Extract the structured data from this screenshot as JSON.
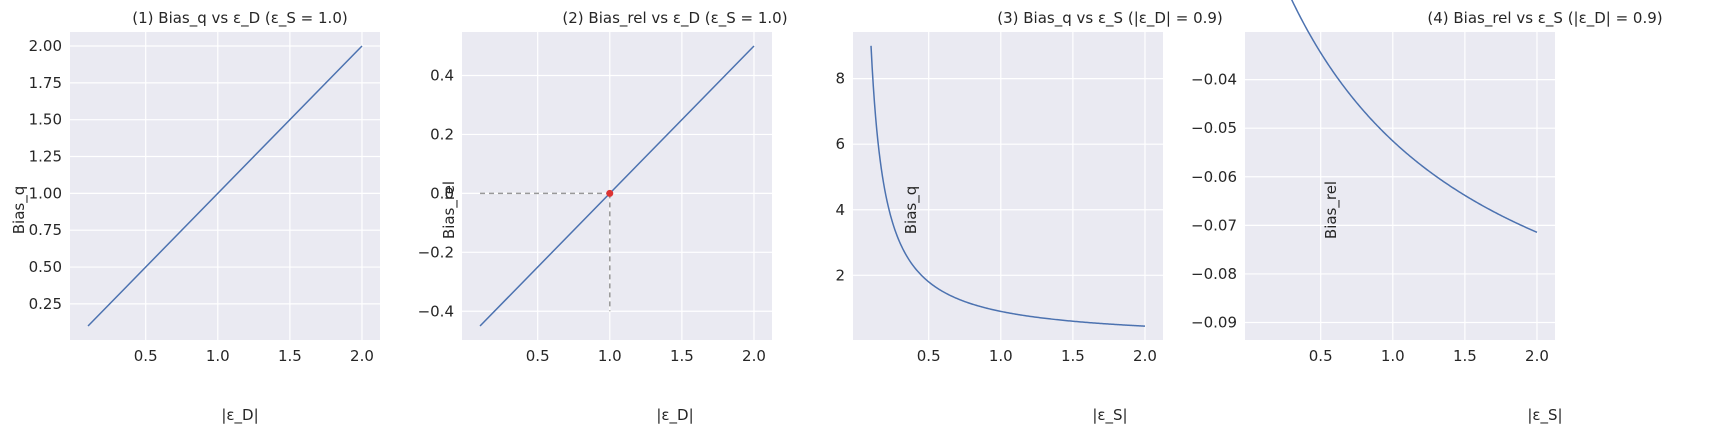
{
  "chart_data": [
    {
      "type": "line",
      "title": "(1) Bias_q vs ε_D (ε_S = 1.0)",
      "xlabel": "|ε_D|",
      "ylabel": "Bias_q",
      "xlim": [
        -0.025,
        2.125
      ],
      "ylim": [
        0.005,
        2.095
      ],
      "xticks": [
        0.5,
        1.0,
        1.5,
        2.0
      ],
      "xtick_labels": [
        "0.5",
        "1.0",
        "1.5",
        "2.0"
      ],
      "yticks": [
        0.25,
        0.5,
        0.75,
        1.0,
        1.25,
        1.5,
        1.75,
        2.0
      ],
      "ytick_labels": [
        "0.25",
        "0.50",
        "0.75",
        "1.00",
        "1.25",
        "1.50",
        "1.75",
        "2.00"
      ],
      "grid": true,
      "series": [
        {
          "x": [
            0.1,
            2.0
          ],
          "y": [
            0.1,
            2.0
          ]
        }
      ]
    },
    {
      "type": "line",
      "title": "(2) Bias_rel vs ε_D (ε_S = 1.0)",
      "xlabel": "|ε_D|",
      "ylabel": "Bias_rel",
      "xlim": [
        -0.025,
        2.125
      ],
      "ylim": [
        -0.4975,
        0.5475
      ],
      "xticks": [
        0.5,
        1.0,
        1.5,
        2.0
      ],
      "xtick_labels": [
        "0.5",
        "1.0",
        "1.5",
        "2.0"
      ],
      "yticks": [
        -0.4,
        -0.2,
        0.0,
        0.2,
        0.4
      ],
      "ytick_labels": [
        "−0.4",
        "−0.2",
        "0.0",
        "0.2",
        "0.4"
      ],
      "grid": true,
      "series": [
        {
          "x": [
            0.1,
            2.0
          ],
          "y": [
            -0.45,
            0.5
          ]
        }
      ],
      "reference_point": {
        "x": 1.0,
        "y": 0.0
      },
      "guides": [
        {
          "from": [
            0.1,
            0.0
          ],
          "to": [
            1.0,
            0.0
          ]
        },
        {
          "from": [
            1.0,
            0.0
          ],
          "to": [
            1.0,
            -0.4
          ]
        }
      ]
    },
    {
      "type": "line",
      "title": "(3) Bias_q vs ε_S (|ε_D| = 0.9)",
      "xlabel": "|ε_S|",
      "ylabel": "Bias_q",
      "xlim": [
        -0.025,
        2.125
      ],
      "ylim": [
        0.0275,
        9.4225
      ],
      "xticks": [
        0.5,
        1.0,
        1.5,
        2.0
      ],
      "xtick_labels": [
        "0.5",
        "1.0",
        "1.5",
        "2.0"
      ],
      "yticks": [
        2,
        4,
        6,
        8
      ],
      "ytick_labels": [
        "2",
        "4",
        "6",
        "8"
      ],
      "grid": true,
      "series": [
        {
          "function": "0.9 / x",
          "x_range": [
            0.1,
            2.0
          ]
        }
      ]
    },
    {
      "type": "line",
      "title": "(4) Bias_rel vs ε_S (|ε_D| = 0.9)",
      "xlabel": "|ε_S|",
      "ylabel": "Bias_rel",
      "xlim": [
        -0.025,
        2.125
      ],
      "ylim": [
        -0.0936,
        -0.0302
      ],
      "xticks": [
        0.5,
        1.0,
        1.5,
        2.0
      ],
      "xtick_labels": [
        "0.5",
        "1.0",
        "1.5",
        "2.0"
      ],
      "yticks": [
        -0.09,
        -0.08,
        -0.07,
        -0.06,
        -0.05,
        -0.04
      ],
      "ytick_labels": [
        "−0.09",
        "−0.08",
        "−0.07",
        "−0.06",
        "−0.05",
        "−0.04"
      ],
      "grid": true,
      "series": [
        {
          "function": "-0.1 * x / (1.9 + 0.9 * (x - 1))",
          "x_range": [
            0.1,
            2.0
          ]
        }
      ]
    }
  ]
}
